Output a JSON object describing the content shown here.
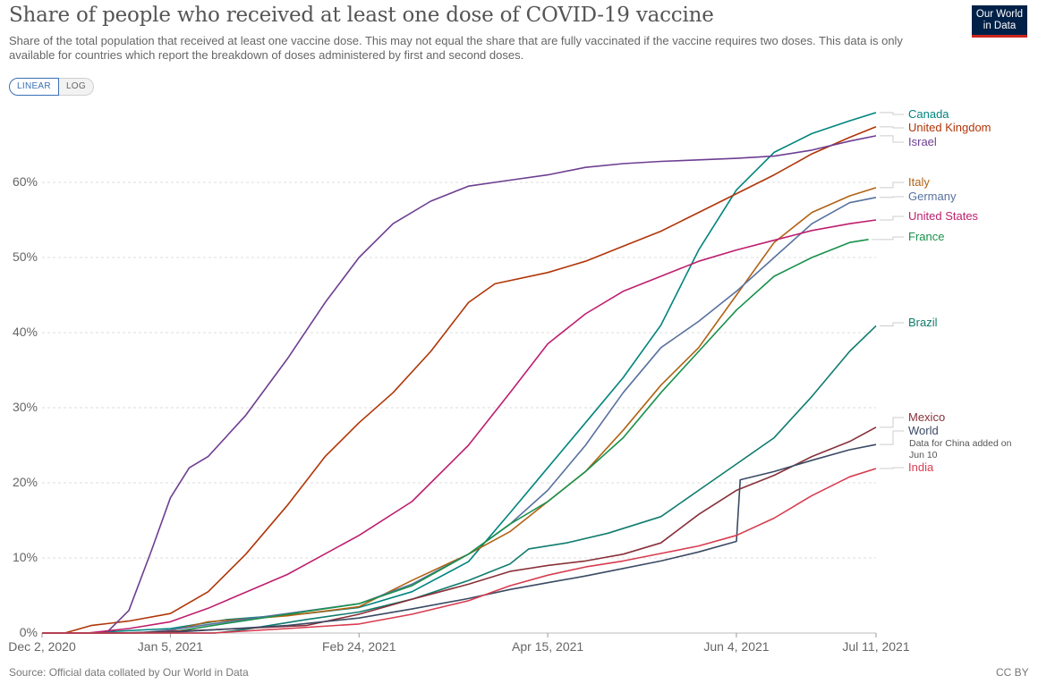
{
  "header": {
    "title": "Share of people who received at least one dose of COVID-19 vaccine",
    "subtitle": "Share of the total population that received at least one vaccine dose. This may not equal the share that are fully vaccinated if the vaccine requires two doses. This data is only available for countries which report the breakdown of doses administered by first and second doses.",
    "logo_line1": "Our World",
    "logo_line2": "in Data"
  },
  "controls": {
    "linear_label": "LINEAR",
    "log_label": "LOG",
    "active": "LINEAR"
  },
  "footer": {
    "source": "Source: Official data collated by Our World in Data",
    "license": "CC BY"
  },
  "chart_data": {
    "type": "line",
    "scale": "linear",
    "y_unit": "%",
    "ylim": [
      0,
      70
    ],
    "yticks": [
      0,
      10,
      20,
      30,
      40,
      50,
      60
    ],
    "ytick_labels": [
      "0%",
      "10%",
      "20%",
      "30%",
      "40%",
      "50%",
      "60%"
    ],
    "xlim": [
      "2020-12-02",
      "2021-07-11"
    ],
    "xticks": [
      "2020-12-02",
      "2021-01-05",
      "2021-02-24",
      "2021-04-15",
      "2021-06-04",
      "2021-07-11"
    ],
    "xtick_labels": [
      "Dec 2, 2020",
      "Jan 5, 2021",
      "Feb 24, 2021",
      "Apr 15, 2021",
      "Jun 4, 2021",
      "Jul 11, 2021"
    ],
    "grid": "horizontal dashed",
    "legend": "right, labels at line ends",
    "series": [
      {
        "name": "Canada",
        "color": "#00847e",
        "points": [
          [
            "2020-12-14",
            0
          ],
          [
            "2020-12-24",
            0.3
          ],
          [
            "2021-01-05",
            0.6
          ],
          [
            "2021-01-20",
            1.8
          ],
          [
            "2021-02-10",
            2.6
          ],
          [
            "2021-02-24",
            3.4
          ],
          [
            "2021-03-10",
            5.5
          ],
          [
            "2021-03-25",
            9.5
          ],
          [
            "2021-04-05",
            16
          ],
          [
            "2021-04-15",
            22
          ],
          [
            "2021-04-25",
            28
          ],
          [
            "2021-05-05",
            34
          ],
          [
            "2021-05-15",
            41
          ],
          [
            "2021-05-25",
            51
          ],
          [
            "2021-06-04",
            59
          ],
          [
            "2021-06-14",
            64
          ],
          [
            "2021-06-24",
            66.5
          ],
          [
            "2021-07-04",
            68.2
          ],
          [
            "2021-07-11",
            69.3
          ]
        ]
      },
      {
        "name": "United Kingdom",
        "color": "#c15065",
        "line_color": "#b13507",
        "points": [
          [
            "2020-12-08",
            0
          ],
          [
            "2020-12-15",
            1
          ],
          [
            "2020-12-25",
            1.6
          ],
          [
            "2021-01-05",
            2.6
          ],
          [
            "2021-01-15",
            5.5
          ],
          [
            "2021-01-25",
            10.5
          ],
          [
            "2021-02-05",
            17
          ],
          [
            "2021-02-15",
            23.5
          ],
          [
            "2021-02-24",
            28
          ],
          [
            "2021-03-05",
            32
          ],
          [
            "2021-03-15",
            37.5
          ],
          [
            "2021-03-25",
            44
          ],
          [
            "2021-04-01",
            46.5
          ],
          [
            "2021-04-15",
            48
          ],
          [
            "2021-04-25",
            49.5
          ],
          [
            "2021-05-05",
            51.5
          ],
          [
            "2021-05-15",
            53.5
          ],
          [
            "2021-05-25",
            56
          ],
          [
            "2021-06-04",
            58.5
          ],
          [
            "2021-06-14",
            61
          ],
          [
            "2021-06-24",
            63.8
          ],
          [
            "2021-07-04",
            66
          ],
          [
            "2021-07-11",
            67.4
          ]
        ]
      },
      {
        "name": "Israel",
        "color": "#6d3e91",
        "points": [
          [
            "2020-12-19",
            0
          ],
          [
            "2020-12-25",
            3
          ],
          [
            "2020-12-31",
            11
          ],
          [
            "2021-01-05",
            18
          ],
          [
            "2021-01-10",
            22
          ],
          [
            "2021-01-15",
            23.5
          ],
          [
            "2021-01-25",
            29
          ],
          [
            "2021-02-05",
            36.5
          ],
          [
            "2021-02-15",
            44
          ],
          [
            "2021-02-24",
            50
          ],
          [
            "2021-03-05",
            54.5
          ],
          [
            "2021-03-15",
            57.5
          ],
          [
            "2021-03-25",
            59.5
          ],
          [
            "2021-04-05",
            60.3
          ],
          [
            "2021-04-15",
            61
          ],
          [
            "2021-04-25",
            62
          ],
          [
            "2021-05-05",
            62.5
          ],
          [
            "2021-05-15",
            62.8
          ],
          [
            "2021-05-25",
            63
          ],
          [
            "2021-06-04",
            63.2
          ],
          [
            "2021-06-14",
            63.5
          ],
          [
            "2021-06-24",
            64.3
          ],
          [
            "2021-07-04",
            65.5
          ],
          [
            "2021-07-11",
            66.2
          ]
        ]
      },
      {
        "name": "Italy",
        "color": "#b16214",
        "points": [
          [
            "2020-12-27",
            0
          ],
          [
            "2021-01-05",
            0.3
          ],
          [
            "2021-01-15",
            1.5
          ],
          [
            "2021-02-05",
            2.3
          ],
          [
            "2021-02-24",
            3.5
          ],
          [
            "2021-03-10",
            7
          ],
          [
            "2021-03-25",
            10.5
          ],
          [
            "2021-04-05",
            13.5
          ],
          [
            "2021-04-15",
            17.5
          ],
          [
            "2021-04-25",
            21.5
          ],
          [
            "2021-05-05",
            27
          ],
          [
            "2021-05-15",
            33
          ],
          [
            "2021-05-25",
            38
          ],
          [
            "2021-06-04",
            45
          ],
          [
            "2021-06-14",
            52
          ],
          [
            "2021-06-24",
            56
          ],
          [
            "2021-07-04",
            58.2
          ],
          [
            "2021-07-11",
            59.3
          ]
        ]
      },
      {
        "name": "Germany",
        "color": "#58719e",
        "points": [
          [
            "2020-12-27",
            0
          ],
          [
            "2021-01-05",
            0.4
          ],
          [
            "2021-01-20",
            1.5
          ],
          [
            "2021-02-05",
            2.6
          ],
          [
            "2021-02-24",
            3.9
          ],
          [
            "2021-03-10",
            6.5
          ],
          [
            "2021-03-25",
            10.5
          ],
          [
            "2021-04-05",
            14.5
          ],
          [
            "2021-04-15",
            19
          ],
          [
            "2021-04-25",
            25
          ],
          [
            "2021-05-05",
            32
          ],
          [
            "2021-05-15",
            38
          ],
          [
            "2021-05-25",
            41.5
          ],
          [
            "2021-06-04",
            45.5
          ],
          [
            "2021-06-14",
            50
          ],
          [
            "2021-06-24",
            54.5
          ],
          [
            "2021-07-04",
            57.3
          ],
          [
            "2021-07-11",
            58
          ]
        ]
      },
      {
        "name": "United States",
        "color": "#be1e6e",
        "points": [
          [
            "2020-12-14",
            0
          ],
          [
            "2020-12-25",
            0.6
          ],
          [
            "2021-01-05",
            1.5
          ],
          [
            "2021-01-15",
            3.3
          ],
          [
            "2021-02-05",
            7.8
          ],
          [
            "2021-02-24",
            13
          ],
          [
            "2021-03-10",
            17.5
          ],
          [
            "2021-03-25",
            25
          ],
          [
            "2021-04-05",
            32
          ],
          [
            "2021-04-15",
            38.5
          ],
          [
            "2021-04-25",
            42.5
          ],
          [
            "2021-05-05",
            45.5
          ],
          [
            "2021-05-15",
            47.5
          ],
          [
            "2021-05-25",
            49.5
          ],
          [
            "2021-06-04",
            51
          ],
          [
            "2021-06-14",
            52.3
          ],
          [
            "2021-06-24",
            53.6
          ],
          [
            "2021-07-04",
            54.5
          ],
          [
            "2021-07-11",
            55
          ]
        ]
      },
      {
        "name": "France",
        "color": "#18914b",
        "points": [
          [
            "2020-12-27",
            0
          ],
          [
            "2021-01-05",
            0.1
          ],
          [
            "2021-01-20",
            1.3
          ],
          [
            "2021-02-05",
            2.5
          ],
          [
            "2021-02-24",
            3.9
          ],
          [
            "2021-03-10",
            6.3
          ],
          [
            "2021-03-25",
            10.5
          ],
          [
            "2021-04-05",
            14.5
          ],
          [
            "2021-04-15",
            17.5
          ],
          [
            "2021-04-25",
            21.5
          ],
          [
            "2021-05-05",
            26
          ],
          [
            "2021-05-15",
            32
          ],
          [
            "2021-05-25",
            37.5
          ],
          [
            "2021-06-04",
            43
          ],
          [
            "2021-06-14",
            47.5
          ],
          [
            "2021-06-24",
            50
          ],
          [
            "2021-07-04",
            52
          ],
          [
            "2021-07-09",
            52.4
          ]
        ]
      },
      {
        "name": "Brazil",
        "color": "#0f7c6e",
        "points": [
          [
            "2021-01-17",
            0
          ],
          [
            "2021-01-25",
            0.5
          ],
          [
            "2021-02-10",
            1.8
          ],
          [
            "2021-02-24",
            2.8
          ],
          [
            "2021-03-10",
            4.5
          ],
          [
            "2021-03-25",
            7
          ],
          [
            "2021-04-05",
            9.2
          ],
          [
            "2021-04-10",
            11.2
          ],
          [
            "2021-04-20",
            12
          ],
          [
            "2021-05-01",
            13.3
          ],
          [
            "2021-05-15",
            15.5
          ],
          [
            "2021-05-25",
            19
          ],
          [
            "2021-06-04",
            22.5
          ],
          [
            "2021-06-14",
            26
          ],
          [
            "2021-06-24",
            31.5
          ],
          [
            "2021-07-04",
            37.5
          ],
          [
            "2021-07-11",
            40.9
          ]
        ]
      },
      {
        "name": "Mexico",
        "color": "#883039",
        "points": [
          [
            "2020-12-24",
            0
          ],
          [
            "2021-01-15",
            0.4
          ],
          [
            "2021-02-10",
            1
          ],
          [
            "2021-02-24",
            2.5
          ],
          [
            "2021-03-10",
            4.5
          ],
          [
            "2021-03-25",
            6.5
          ],
          [
            "2021-04-05",
            8.2
          ],
          [
            "2021-04-15",
            9
          ],
          [
            "2021-04-25",
            9.6
          ],
          [
            "2021-05-05",
            10.5
          ],
          [
            "2021-05-15",
            12
          ],
          [
            "2021-05-25",
            15.8
          ],
          [
            "2021-06-04",
            19
          ],
          [
            "2021-06-14",
            21
          ],
          [
            "2021-06-24",
            23.5
          ],
          [
            "2021-07-04",
            25.5
          ],
          [
            "2021-07-11",
            27.4
          ]
        ]
      },
      {
        "name": "World",
        "color": "#3a4a63",
        "points": [
          [
            "2020-12-15",
            0
          ],
          [
            "2021-01-05",
            0.1
          ],
          [
            "2021-02-05",
            1
          ],
          [
            "2021-02-24",
            2
          ],
          [
            "2021-03-10",
            3.2
          ],
          [
            "2021-03-25",
            4.6
          ],
          [
            "2021-04-05",
            5.8
          ],
          [
            "2021-04-15",
            6.7
          ],
          [
            "2021-04-25",
            7.6
          ],
          [
            "2021-05-05",
            8.6
          ],
          [
            "2021-05-15",
            9.6
          ],
          [
            "2021-05-25",
            10.8
          ],
          [
            "2021-06-04",
            12.2
          ],
          [
            "2021-06-05",
            20.4
          ],
          [
            "2021-06-14",
            21.5
          ],
          [
            "2021-06-24",
            23
          ],
          [
            "2021-07-04",
            24.4
          ],
          [
            "2021-07-11",
            25.1
          ]
        ]
      },
      {
        "name": "India",
        "color": "#d73c50",
        "points": [
          [
            "2021-01-16",
            0
          ],
          [
            "2021-02-05",
            0.6
          ],
          [
            "2021-02-24",
            1.2
          ],
          [
            "2021-03-10",
            2.5
          ],
          [
            "2021-03-25",
            4.3
          ],
          [
            "2021-04-05",
            6.3
          ],
          [
            "2021-04-15",
            7.7
          ],
          [
            "2021-04-25",
            8.8
          ],
          [
            "2021-05-05",
            9.6
          ],
          [
            "2021-05-15",
            10.6
          ],
          [
            "2021-05-25",
            11.6
          ],
          [
            "2021-06-04",
            13
          ],
          [
            "2021-06-14",
            15.3
          ],
          [
            "2021-06-24",
            18.3
          ],
          [
            "2021-07-04",
            20.8
          ],
          [
            "2021-07-11",
            21.9
          ]
        ]
      }
    ],
    "legend_labels": [
      {
        "text": "Canada",
        "color": "#00847e"
      },
      {
        "text": "United Kingdom",
        "color": "#b13507"
      },
      {
        "text": "Israel",
        "color": "#6d3e91"
      },
      {
        "text": "Italy",
        "color": "#b16214"
      },
      {
        "text": "Germany",
        "color": "#58719e"
      },
      {
        "text": "United States",
        "color": "#be1e6e"
      },
      {
        "text": "France",
        "color": "#18914b"
      },
      {
        "text": "Brazil",
        "color": "#0f7c6e"
      },
      {
        "text": "Mexico",
        "color": "#883039"
      },
      {
        "text": "World",
        "color": "#3a4a63"
      },
      {
        "text": "Data for China added on Jun 10",
        "color": "#3a4a63",
        "note": true
      },
      {
        "text": "India",
        "color": "#d73c50"
      }
    ]
  }
}
